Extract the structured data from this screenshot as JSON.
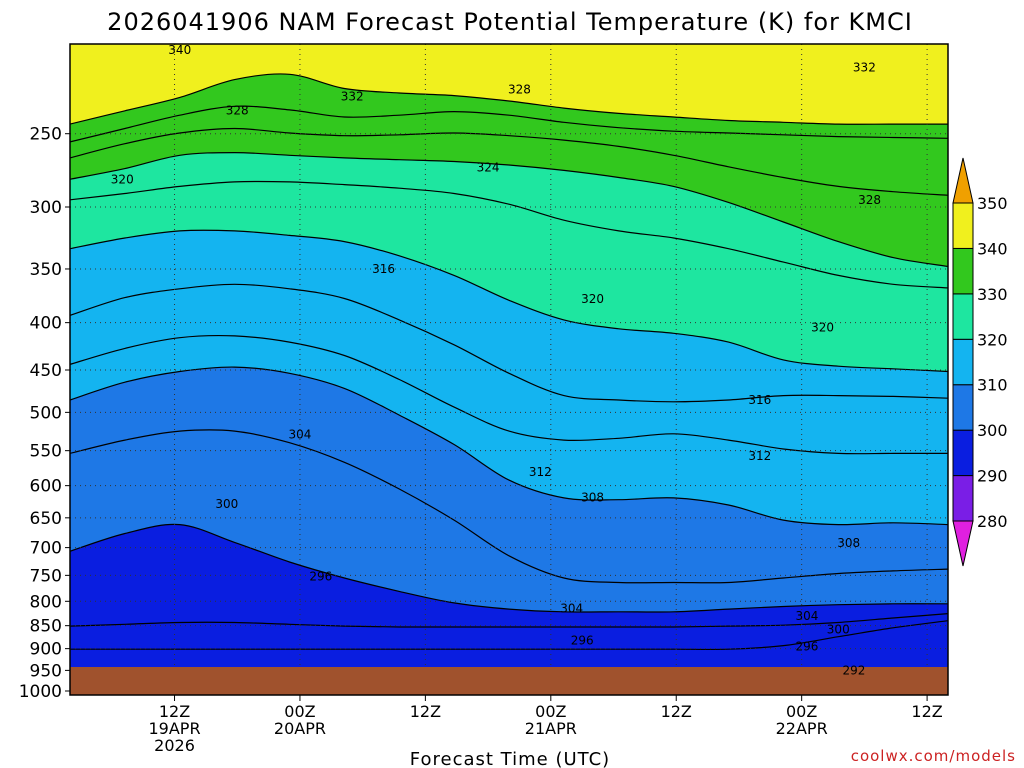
{
  "chart_data": {
    "type": "contour",
    "title": "2026041906 NAM Forecast Potential Temperature (K) for KMCI",
    "xlabel": "Forecast Time (UTC)",
    "ylabel": "",
    "credit": "coolwx.com/models",
    "y_axis": {
      "scale": "log",
      "range": [
        1010,
        200
      ],
      "ticks": [
        250,
        300,
        350,
        400,
        450,
        500,
        550,
        600,
        650,
        700,
        750,
        800,
        850,
        900,
        950,
        1000
      ]
    },
    "x_axis": {
      "range_hours": [
        -4,
        80
      ],
      "ticks": [
        {
          "hour": 6,
          "lines": [
            "12Z",
            "19APR",
            "2026"
          ]
        },
        {
          "hour": 18,
          "lines": [
            "00Z",
            "20APR"
          ]
        },
        {
          "hour": 30,
          "lines": [
            "12Z"
          ]
        },
        {
          "hour": 42,
          "lines": [
            "00Z",
            "21APR"
          ]
        },
        {
          "hour": 54,
          "lines": [
            "12Z"
          ]
        },
        {
          "hour": 66,
          "lines": [
            "00Z",
            "22APR"
          ]
        },
        {
          "hour": 78,
          "lines": [
            "12Z"
          ]
        }
      ]
    },
    "colorbar": {
      "levels": [
        280,
        290,
        300,
        310,
        320,
        330,
        340,
        350
      ],
      "colors": [
        "#e020e0",
        "#7a1ee6",
        "#0a1ee0",
        "#1e78e6",
        "#14b4f0",
        "#1ee6a0",
        "#32c81e",
        "#f0f01e",
        "#f0a000"
      ]
    },
    "series": [
      {
        "level": 292,
        "heights": [
          20,
          20,
          20,
          20,
          20,
          20,
          20,
          20,
          20,
          20,
          20,
          20,
          20,
          24,
          34,
          44,
          52
        ]
      },
      {
        "level": 296,
        "heights": [
          46,
          48,
          50,
          50,
          48,
          46,
          45,
          45,
          45,
          45,
          45,
          45,
          46,
          47,
          50,
          55,
          60
        ]
      },
      {
        "level": 300,
        "heights": [
          130,
          150,
          160,
          140,
          118,
          100,
          85,
          72,
          65,
          62,
          62,
          62,
          65,
          68,
          70,
          71,
          71
        ]
      },
      {
        "level": 304,
        "heights": [
          240,
          255,
          265,
          265,
          252,
          230,
          200,
          165,
          125,
          100,
          95,
          95,
          95,
          100,
          105,
          108,
          110
        ]
      },
      {
        "level": 308,
        "heights": [
          300,
          320,
          332,
          337,
          330,
          313,
          283,
          250,
          210,
          190,
          188,
          190,
          182,
          165,
          160,
          162,
          160
        ]
      },
      {
        "level": 312,
        "heights": [
          340,
          358,
          370,
          372,
          365,
          350,
          323,
          292,
          265,
          255,
          257,
          262,
          255,
          245,
          240,
          240,
          240
        ]
      },
      {
        "level": 316,
        "heights": [
          395,
          415,
          425,
          430,
          425,
          414,
          390,
          362,
          330,
          305,
          300,
          298,
          300,
          305,
          305,
          304,
          302
        ]
      },
      {
        "level": 320,
        "heights": [
          470,
          482,
          490,
          490,
          485,
          478,
          462,
          440,
          412,
          390,
          380,
          375,
          365,
          345,
          338,
          335,
          332
        ]
      },
      {
        "level": 324,
        "heights": [
          525,
          532,
          540,
          545,
          545,
          542,
          538,
          532,
          520,
          502,
          490,
          482,
          470,
          455,
          440,
          430,
          426
        ]
      },
      {
        "level": 328,
        "heights": [
          548,
          560,
          575,
          578,
          575,
          572,
          570,
          568,
          564,
          558,
          550,
          540,
          522,
          500,
          478,
          460,
          450
        ]
      },
      {
        "level": 332,
        "heights": [
          572,
          588,
          600,
          605,
          600,
          597,
          598,
          600,
          597,
          592,
          585,
          575,
          562,
          550,
          540,
          534,
          530
        ]
      },
      {
        "level": 336,
        "heights": [
          590,
          605,
          620,
          630,
          626,
          618,
          620,
          624,
          620,
          612,
          606,
          602,
          600,
          598,
          596,
          595,
          594
        ]
      },
      {
        "level": 340,
        "heights": [
          610,
          625,
          640,
          660,
          666,
          650,
          645,
          642,
          636,
          628,
          622,
          618,
          614,
          612,
          610,
          610,
          610
        ]
      }
    ],
    "contour_labels": [
      {
        "text": "340",
        "hour": 6.5,
        "p": 203
      },
      {
        "text": "332",
        "hour": 23,
        "p": 228
      },
      {
        "text": "328",
        "hour": 39,
        "p": 224
      },
      {
        "text": "332",
        "hour": 72,
        "p": 212
      },
      {
        "text": "328",
        "hour": 12,
        "p": 236
      },
      {
        "text": "320",
        "hour": 1,
        "p": 280
      },
      {
        "text": "324",
        "hour": 36,
        "p": 272
      },
      {
        "text": "328",
        "hour": 72.5,
        "p": 295
      },
      {
        "text": "316",
        "hour": 26,
        "p": 350
      },
      {
        "text": "320",
        "hour": 46,
        "p": 377
      },
      {
        "text": "320",
        "hour": 68,
        "p": 405
      },
      {
        "text": "316",
        "hour": 62,
        "p": 485
      },
      {
        "text": "304",
        "hour": 18,
        "p": 528
      },
      {
        "text": "312",
        "hour": 62,
        "p": 557
      },
      {
        "text": "312",
        "hour": 41,
        "p": 580
      },
      {
        "text": "308",
        "hour": 46,
        "p": 618
      },
      {
        "text": "300",
        "hour": 11,
        "p": 628
      },
      {
        "text": "308",
        "hour": 70.5,
        "p": 692
      },
      {
        "text": "296",
        "hour": 20,
        "p": 752
      },
      {
        "text": "304",
        "hour": 44,
        "p": 814
      },
      {
        "text": "304",
        "hour": 66.5,
        "p": 830
      },
      {
        "text": "300",
        "hour": 69.5,
        "p": 858
      },
      {
        "text": "296",
        "hour": 45,
        "p": 882
      },
      {
        "text": "296",
        "hour": 66.5,
        "p": 895
      },
      {
        "text": "292",
        "hour": 71,
        "p": 950
      }
    ]
  }
}
